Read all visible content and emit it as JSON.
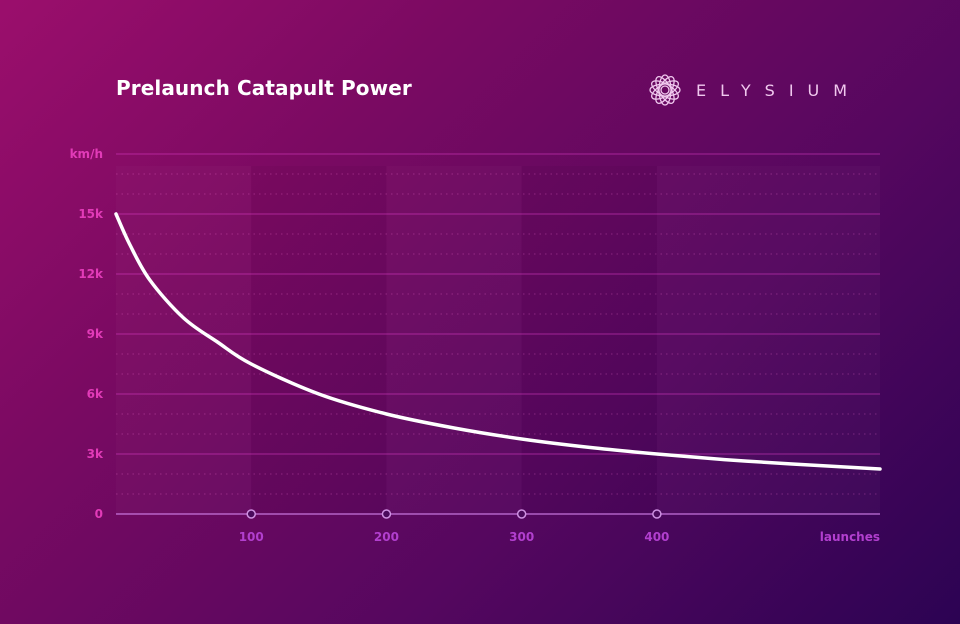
{
  "colors": {
    "accent": "#e23bb8",
    "x_axis_text": "#b23fcf",
    "curve": "#ffffff",
    "logo": "#f0c8ee"
  },
  "brand": {
    "name": "ELYSIUM",
    "icon": "swirl-logo-icon"
  },
  "chart_data": {
    "type": "line",
    "title": "Prelaunch Catapult Power",
    "ylabel": "km/h",
    "xlabel": "launches",
    "ylim": [
      0,
      18000
    ],
    "xlim": [
      0,
      565
    ],
    "yticks": [
      0,
      3000,
      6000,
      9000,
      12000,
      15000
    ],
    "ytick_labels": [
      "0",
      "3k",
      "6k",
      "9k",
      "12k",
      "15k"
    ],
    "xticks": [
      100,
      200,
      300,
      400
    ],
    "xtick_labels": [
      "100",
      "200",
      "300",
      "400"
    ],
    "grid": true,
    "series": [
      {
        "x": [
          0,
          10,
          25,
          50,
          75,
          100,
          150,
          200,
          250,
          300,
          350,
          400,
          450,
          500,
          565
        ],
        "y": [
          15000,
          13500,
          11700,
          9800,
          8600,
          7500,
          6000,
          5000,
          4300,
          3750,
          3330,
          3000,
          2720,
          2500,
          2250
        ]
      }
    ]
  }
}
